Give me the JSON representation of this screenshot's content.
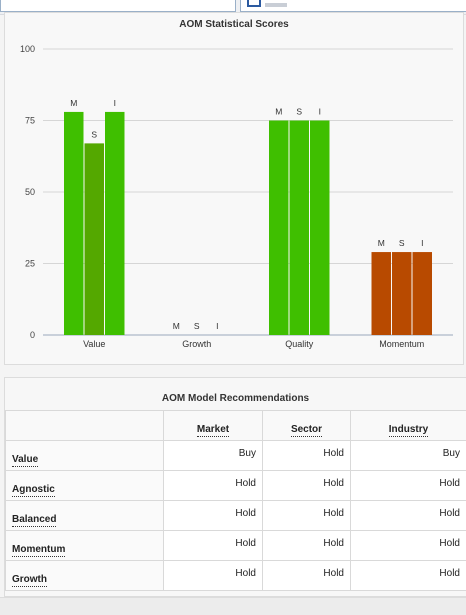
{
  "chart_panel": {
    "title": "AOM Statistical Scores"
  },
  "chart_data": {
    "type": "bar",
    "title": "AOM Statistical Scores",
    "categories": [
      "Value",
      "Growth",
      "Quality",
      "Momentum"
    ],
    "series": [
      {
        "name": "M",
        "values": [
          78,
          0,
          75,
          29
        ]
      },
      {
        "name": "S",
        "values": [
          67,
          0,
          75,
          29
        ]
      },
      {
        "name": "I",
        "values": [
          78,
          0,
          75,
          29
        ]
      }
    ],
    "bar_colors": [
      [
        "#3fbf00",
        "#54a800",
        "#3fbf00"
      ],
      [
        "#3fbf00",
        "#3fbf00",
        "#3fbf00"
      ],
      [
        "#3fbf00",
        "#3fbf00",
        "#3fbf00"
      ],
      [
        "#b84a00",
        "#b84a00",
        "#b84a00"
      ]
    ],
    "ylim": [
      0,
      100
    ],
    "yticks": [
      0,
      25,
      50,
      75,
      100
    ],
    "grid": true,
    "xlabel": "",
    "ylabel": ""
  },
  "table_panel": {
    "title": "AOM Model Recommendations",
    "columns": [
      "Market",
      "Sector",
      "Industry"
    ],
    "rows": [
      {
        "label": "Value",
        "values": [
          "Buy",
          "Hold",
          "Buy"
        ]
      },
      {
        "label": "Agnostic",
        "values": [
          "Hold",
          "Hold",
          "Hold"
        ]
      },
      {
        "label": "Balanced",
        "values": [
          "Hold",
          "Hold",
          "Hold"
        ]
      },
      {
        "label": "Momentum",
        "values": [
          "Hold",
          "Hold",
          "Hold"
        ]
      },
      {
        "label": "Growth",
        "values": [
          "Hold",
          "Hold",
          "Hold"
        ]
      }
    ]
  }
}
